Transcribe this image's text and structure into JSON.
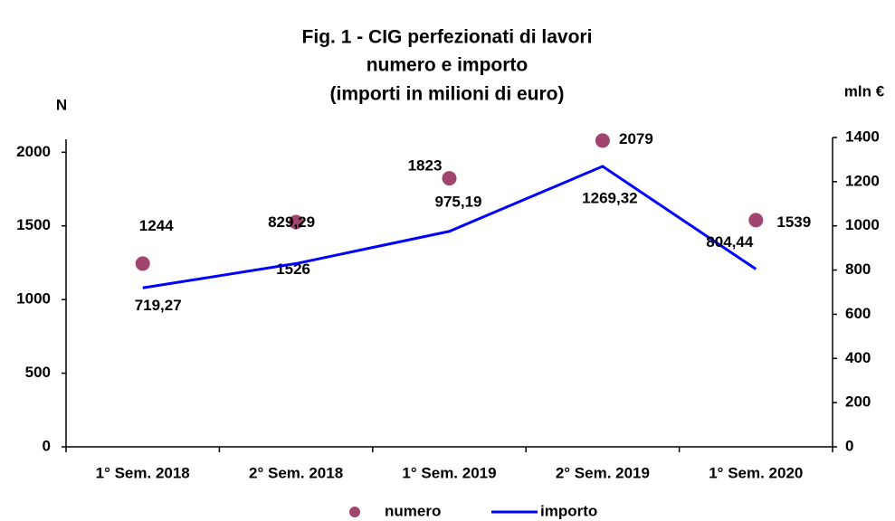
{
  "chart_data": {
    "type": "line",
    "title": [
      "Fig. 1 - CIG perfezionati di lavori",
      "numero e importo",
      "(importi in milioni di euro)"
    ],
    "y_label": "N",
    "y2_label": "mln €",
    "categories": [
      "1° Sem. 2018",
      "2° Sem. 2018",
      "1° Sem. 2019",
      "2° Sem. 2019",
      "1° Sem. 2020"
    ],
    "series": [
      {
        "name": "numero",
        "type": "scatter",
        "color": "#a0466e",
        "axis": "y",
        "values": [
          1244,
          1526,
          1823,
          2079,
          1539
        ]
      },
      {
        "name": "importo",
        "type": "line",
        "color": "#0000ff",
        "axis": "y2",
        "values": [
          719.27,
          829.29,
          975.19,
          1269.32,
          804.44
        ],
        "value_labels": [
          "719,27",
          "829,29",
          "975,19",
          "1269,32",
          "804,44"
        ]
      }
    ],
    "ylim": [
      0,
      2100
    ],
    "yticks": [
      0,
      500,
      1000,
      1500,
      2000
    ],
    "y2lim": [
      0,
      1400
    ],
    "y2ticks": [
      0,
      200,
      400,
      600,
      800,
      1000,
      1200,
      1400
    ],
    "legend": "bottom"
  }
}
